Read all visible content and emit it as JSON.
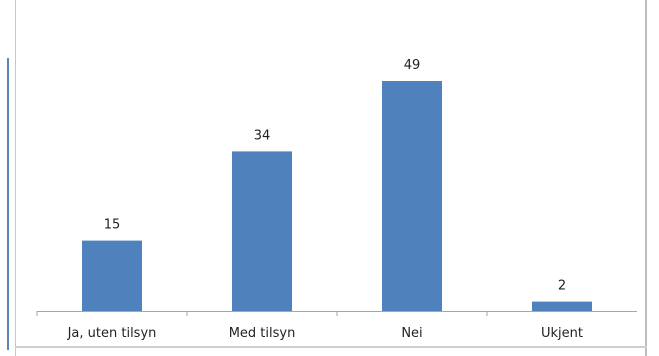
{
  "chart_data": {
    "type": "bar",
    "categories": [
      "Ja, uten tilsyn",
      "Med tilsyn",
      "Nei",
      "Ukjent"
    ],
    "values": [
      15,
      34,
      49,
      2
    ],
    "data_labels": [
      "15",
      "34",
      "49",
      "2"
    ],
    "title": "",
    "xlabel": "",
    "ylabel": "",
    "ylim": [
      0,
      49
    ],
    "grid": false,
    "legend": "none",
    "bar_color": "#4f81bd",
    "axis_color": "#a6a6a6"
  }
}
